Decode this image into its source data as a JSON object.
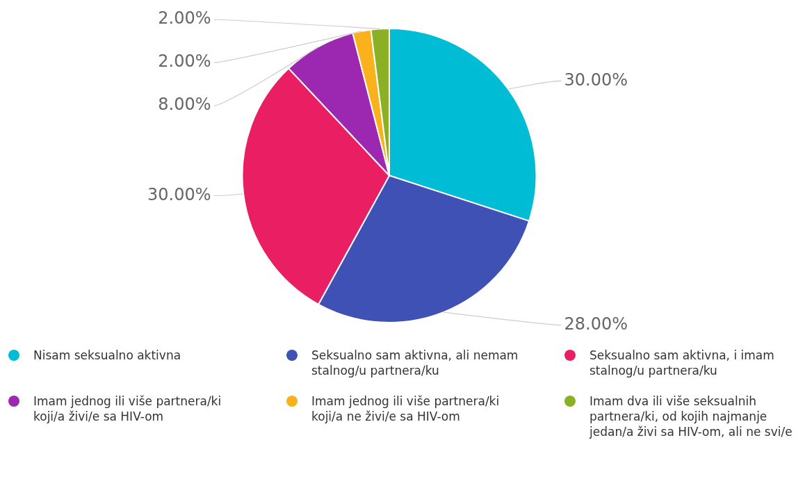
{
  "chart_data": {
    "type": "pie",
    "categories": [
      "Nisam seksualno aktivna",
      "Seksualno sam aktivna, ali nemam stalnog/u partnera/ku",
      "Seksualno sam aktivna, i imam stalnog/u partnera/ku",
      "Imam jednog ili više partnera/ki koji/a živi/e sa HIV-om",
      "Imam jednog ili više partnera/ki koji/a ne živi/e sa HIV-om",
      "Imam dva ili više seksualnih partnera/ki, od kojih najmanje jedan/a živi sa HIV-om, ali ne svi/e"
    ],
    "values": [
      30,
      28,
      30,
      8,
      2,
      2
    ],
    "colors": [
      "#00bcd4",
      "#3f51b5",
      "#e91e63",
      "#9c27b0",
      "#f9b21b",
      "#8bb026"
    ],
    "value_labels": [
      "30.00%",
      "28.00%",
      "30.00%",
      "8.00%",
      "2.00%",
      "2.00%"
    ],
    "legend": "bottom"
  }
}
